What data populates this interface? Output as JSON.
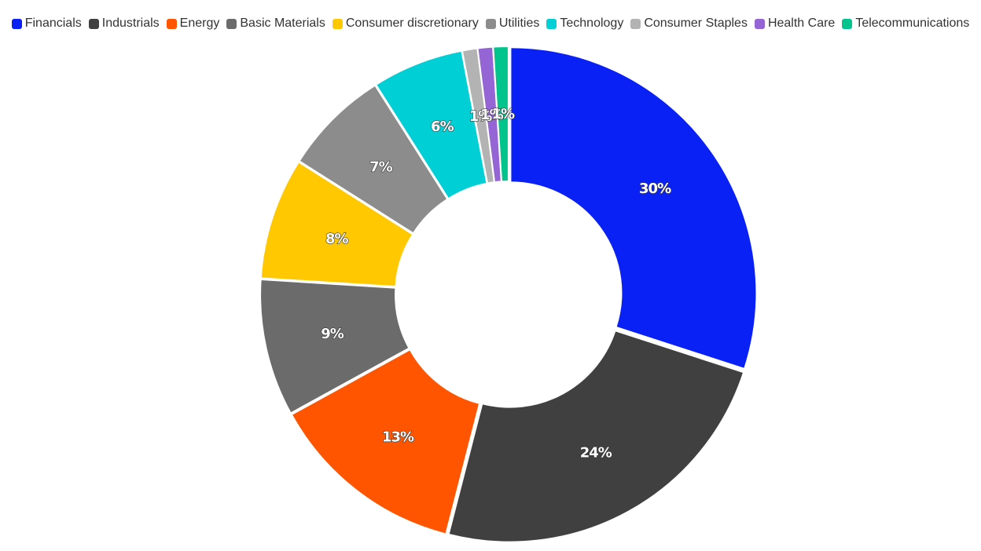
{
  "chart_data": {
    "type": "pie",
    "variant": "donut",
    "title": "",
    "legend_position": "top",
    "categories": [
      "Financials",
      "Industrials",
      "Energy",
      "Basic Materials",
      "Consumer discretionary",
      "Utilities",
      "Technology",
      "Consumer Staples",
      "Health Care",
      "Telecommunications"
    ],
    "values": [
      30,
      24,
      13,
      9,
      8,
      7,
      6,
      1,
      1,
      1
    ],
    "labels": [
      "30%",
      "24%",
      "13%",
      "9%",
      "8%",
      "7%",
      "6%",
      "1%",
      "1%",
      "1%"
    ],
    "colors": [
      "#0a21f5",
      "#404040",
      "#ff5400",
      "#6b6b6b",
      "#ffc800",
      "#8c8c8c",
      "#00d0d6",
      "#b3b3b3",
      "#9565d6",
      "#00c48c"
    ]
  }
}
